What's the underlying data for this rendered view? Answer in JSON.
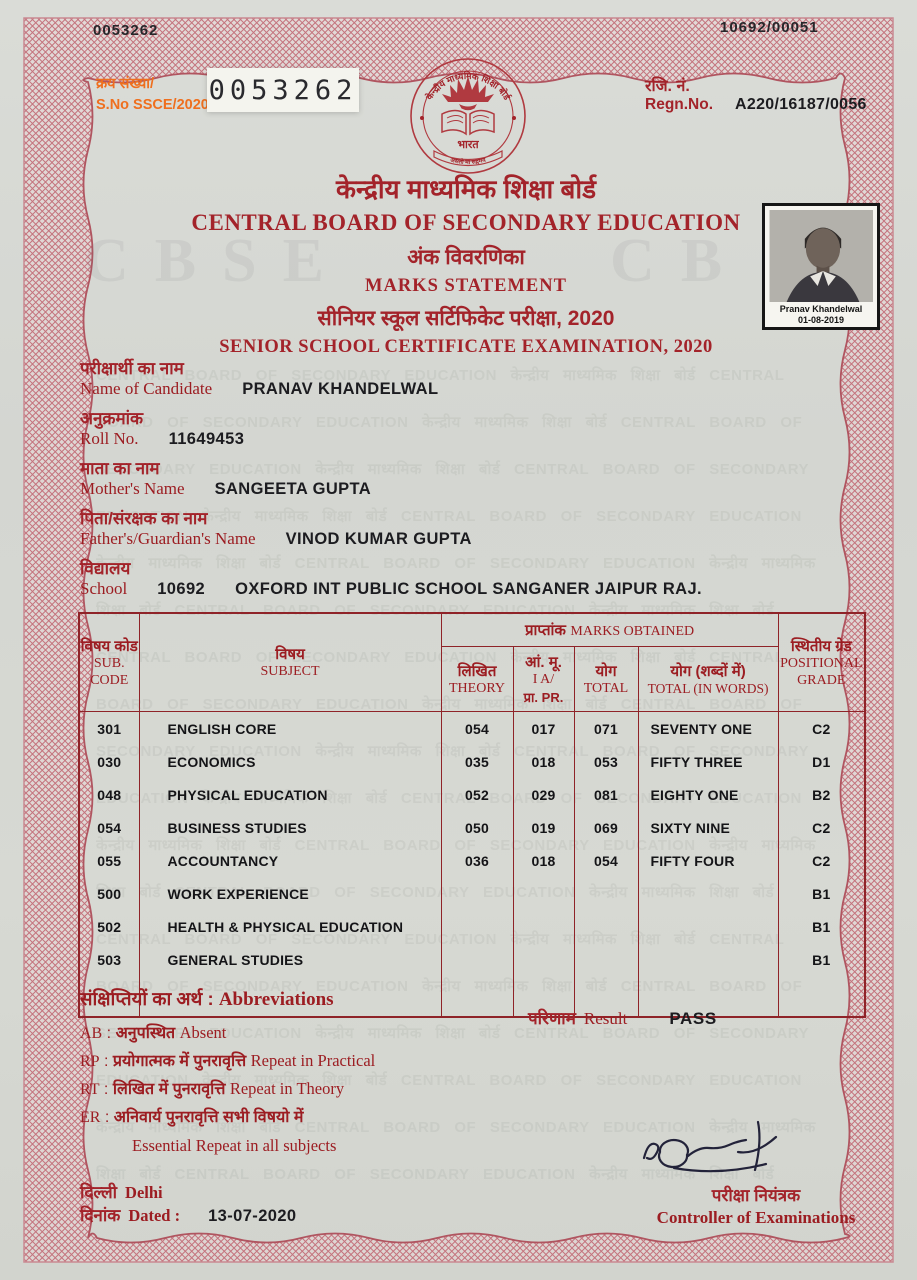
{
  "border": {
    "serial_top": "0053262",
    "center_code": "10692/00051"
  },
  "serial": {
    "label_hi": "क्रय संख्या/",
    "label_en": "S.No SSCE/2020/",
    "number": "0053262"
  },
  "regn": {
    "label_hi": "रजि. नं.",
    "label_en": "Regn.No.",
    "value": "A220/16187/0056"
  },
  "emblem": {
    "ring_text": "केन्द्रीय माध्यमिक शिक्षा बोर्ड",
    "bharat": "भारत",
    "motto": "असतो मा सद्गमय"
  },
  "title": {
    "board_hi": "केन्द्रीय माध्यमिक शिक्षा बोर्ड",
    "board_en": "CENTRAL BOARD OF SECONDARY EDUCATION",
    "doc_hi": "अंक विवरणिका",
    "doc_en": "MARKS STATEMENT",
    "exam_hi": "सीनियर स्कूल सर्टिफिकेट परीक्षा, 2020",
    "exam_en": "SENIOR SCHOOL CERTIFICATE EXAMINATION, 2020"
  },
  "photo": {
    "name": "Pranav Khandelwal",
    "date": "01-08-2019"
  },
  "fields": {
    "candidate": {
      "hi": "परीक्षार्थी का नाम",
      "en": "Name of Candidate",
      "value": "PRANAV KHANDELWAL"
    },
    "roll": {
      "hi": "अनुक्रमांक",
      "en": "Roll No.",
      "value": "11649453"
    },
    "mother": {
      "hi": "माता का नाम",
      "en": "Mother's Name",
      "value": "SANGEETA GUPTA"
    },
    "father": {
      "hi": "पिता/संरक्षक का नाम",
      "en": "Father's/Guardian's Name",
      "value": "VINOD KUMAR GUPTA"
    },
    "school": {
      "hi": "विद्यालय",
      "en": "School",
      "code": "10692",
      "value": "OXFORD INT PUBLIC SCHOOL SANGANER JAIPUR RAJ."
    }
  },
  "table": {
    "headers": {
      "sub_code_hi": "विषय कोड",
      "sub_code_en1": "SUB.",
      "sub_code_en2": "CODE",
      "subject_hi": "विषय",
      "subject_en": "SUBJECT",
      "marks_hi": "प्राप्तांक",
      "marks_en": "MARKS OBTAINED",
      "theory_hi": "लिखित",
      "theory_en": "THEORY",
      "ia_hi": "आं. मू.",
      "ia_en1": "I A/",
      "ia_en2": "प्रा. PR.",
      "total_hi": "योग",
      "total_en": "TOTAL",
      "words_hi": "योग (शब्दों में)",
      "words_en": "TOTAL (IN WORDS)",
      "grade_hi": "स्थितीय ग्रेड",
      "grade_en1": "POSITIONAL",
      "grade_en2": "GRADE"
    },
    "rows": [
      {
        "code": "301",
        "subject": "ENGLISH CORE",
        "theory": "054",
        "ia": "017",
        "total": "071",
        "words": "SEVENTY ONE",
        "grade": "C2"
      },
      {
        "code": "030",
        "subject": "ECONOMICS",
        "theory": "035",
        "ia": "018",
        "total": "053",
        "words": "FIFTY THREE",
        "grade": "D1"
      },
      {
        "code": "048",
        "subject": "PHYSICAL EDUCATION",
        "theory": "052",
        "ia": "029",
        "total": "081",
        "words": "EIGHTY ONE",
        "grade": "B2"
      },
      {
        "code": "054",
        "subject": "BUSINESS STUDIES",
        "theory": "050",
        "ia": "019",
        "total": "069",
        "words": "SIXTY NINE",
        "grade": "C2"
      },
      {
        "code": "055",
        "subject": "ACCOUNTANCY",
        "theory": "036",
        "ia": "018",
        "total": "054",
        "words": "FIFTY FOUR",
        "grade": "C2"
      },
      {
        "code": "500",
        "subject": "WORK EXPERIENCE",
        "theory": "",
        "ia": "",
        "total": "",
        "words": "",
        "grade": "B1"
      },
      {
        "code": "502",
        "subject": "HEALTH & PHYSICAL EDUCATION",
        "theory": "",
        "ia": "",
        "total": "",
        "words": "",
        "grade": "B1"
      },
      {
        "code": "503",
        "subject": "GENERAL STUDIES",
        "theory": "",
        "ia": "",
        "total": "",
        "words": "",
        "grade": "B1"
      }
    ]
  },
  "abbreviations": {
    "title_hi": "संक्षिप्तियों का अर्थ",
    "title_en": "Abbreviations",
    "items": [
      {
        "code": "AB",
        "hi": "अनुपस्थित",
        "en": "Absent"
      },
      {
        "code": "RP",
        "hi": "प्रयोगात्मक में पुनरावृत्ति",
        "en": "Repeat in Practical"
      },
      {
        "code": "RT",
        "hi": "लिखित में पुनरावृत्ति",
        "en": "Repeat in Theory"
      },
      {
        "code": "ER",
        "hi": "अनिवार्य पुनरावृत्ति सभी विषयो में",
        "en": "Essential Repeat in all subjects"
      }
    ]
  },
  "result": {
    "label_hi": "परिणाम",
    "label_en": "Result",
    "value": "PASS"
  },
  "footer": {
    "place_hi": "दिल्ली",
    "place_en": "Delhi",
    "dated_hi": "दिनांक",
    "dated_en": "Dated :",
    "date": "13-07-2020",
    "controller_hi": "परीक्षा नियंत्रक",
    "controller_en": "Controller of Examinations"
  },
  "watermark": {
    "phrase": "CENTRAL BOARD OF SECONDARY EDUCATION केन्द्रीय माध्यमिक शिक्षा बोर्ड",
    "ghost_left": "CBSE",
    "ghost_right": "CB"
  },
  "colors": {
    "accent_red": "#9c1d22",
    "serial_orange": "#ef6f1e",
    "border_pink": "#c4737d",
    "ink": "#1c1c20"
  }
}
